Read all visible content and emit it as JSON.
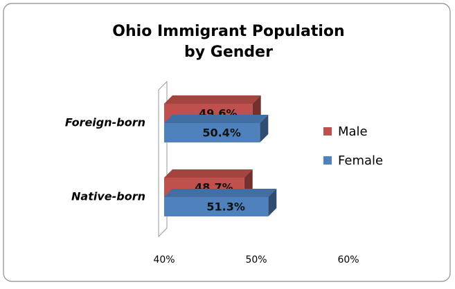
{
  "chart_data": {
    "type": "bar3d_horizontal",
    "title": "Ohio Immigrant Population",
    "subtitle": "by Gender",
    "categories": [
      "Foreign-born",
      "Native-born"
    ],
    "series": [
      {
        "name": "Male",
        "color": "#c0504d",
        "values": [
          49.6,
          48.7
        ],
        "value_labels": [
          "49.6%",
          "48.7%"
        ]
      },
      {
        "name": "Female",
        "color": "#4f81bd",
        "values": [
          50.4,
          51.3
        ],
        "value_labels": [
          "50.4%",
          "51.3%"
        ]
      }
    ],
    "xlim": [
      40,
      60
    ],
    "xticks": [
      {
        "value": 40,
        "label": "40%"
      },
      {
        "value": 50,
        "label": "50%"
      },
      {
        "value": 60,
        "label": "60%"
      }
    ],
    "legend": "right"
  }
}
